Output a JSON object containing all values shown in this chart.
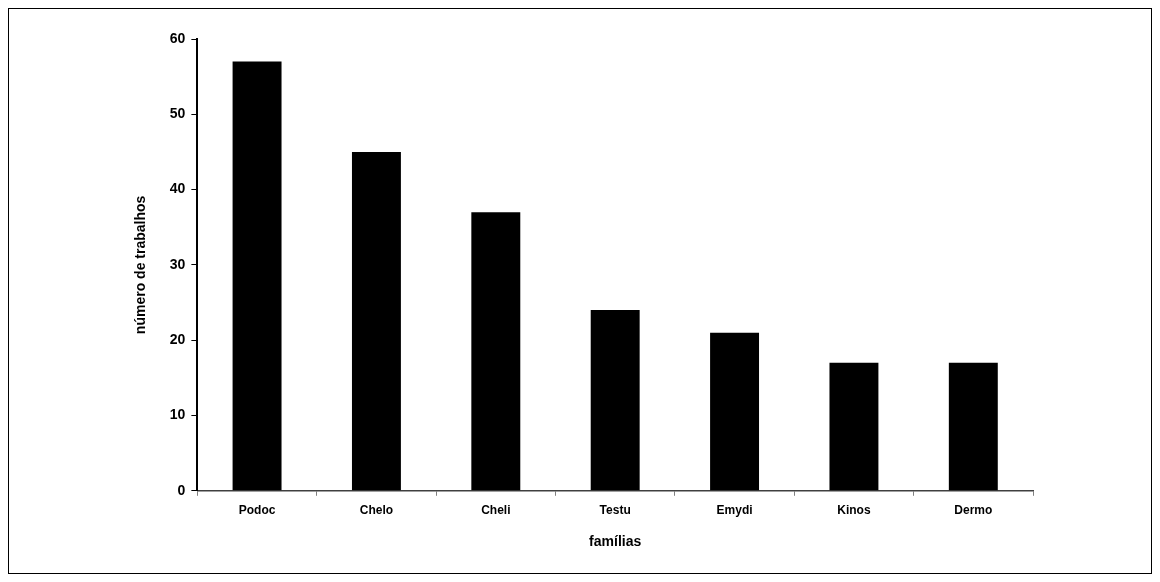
{
  "chart_data": {
    "type": "bar",
    "xlabel": "famílias",
    "ylabel": "número de trabalhos",
    "categories": [
      "Podoc",
      "Chelo",
      "Cheli",
      "Testu",
      "Emydi",
      "Kinos",
      "Dermo"
    ],
    "values": [
      57,
      45,
      37,
      24,
      21,
      17,
      17
    ],
    "color": "#000000",
    "ylim": [
      0,
      60
    ],
    "yticks": [
      0,
      10,
      20,
      30,
      40,
      50,
      60
    ]
  }
}
